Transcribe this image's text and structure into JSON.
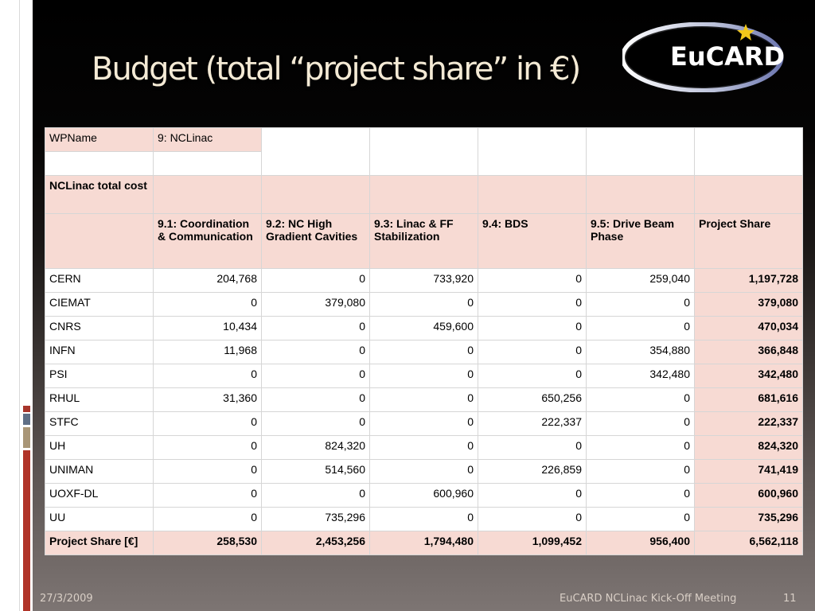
{
  "slide": {
    "title": "Budget (total “project share” in €)",
    "logo_text": "EuCARD",
    "accent": "#f7dad3",
    "star_color": "#f2c81a"
  },
  "table": {
    "wp_row": {
      "label": "WPName",
      "value": "9: NCLinac"
    },
    "total_label": "NCLinac total cost",
    "headers": [
      "",
      "9.1: Coordination & Communication",
      "9.2: NC High Gradient Cavities",
      "9.3: Linac & FF Stabilization",
      "9.4: BDS",
      "9.5: Drive Beam Phase",
      "Project Share"
    ],
    "rows": [
      {
        "name": "CERN",
        "values": [
          "204,768",
          "0",
          "733,920",
          "0",
          "259,040"
        ],
        "share": "1,197,728"
      },
      {
        "name": "CIEMAT",
        "values": [
          "0",
          "379,080",
          "0",
          "0",
          "0"
        ],
        "share": "379,080"
      },
      {
        "name": "CNRS",
        "values": [
          "10,434",
          "0",
          "459,600",
          "0",
          "0"
        ],
        "share": "470,034"
      },
      {
        "name": "INFN",
        "values": [
          "11,968",
          "0",
          "0",
          "0",
          "354,880"
        ],
        "share": "366,848"
      },
      {
        "name": "PSI",
        "values": [
          "0",
          "0",
          "0",
          "0",
          "342,480"
        ],
        "share": "342,480"
      },
      {
        "name": "RHUL",
        "values": [
          "31,360",
          "0",
          "0",
          "650,256",
          "0"
        ],
        "share": "681,616"
      },
      {
        "name": "STFC",
        "values": [
          "0",
          "0",
          "0",
          "222,337",
          "0"
        ],
        "share": "222,337"
      },
      {
        "name": "UH",
        "values": [
          "0",
          "824,320",
          "0",
          "0",
          "0"
        ],
        "share": "824,320"
      },
      {
        "name": "UNIMAN",
        "values": [
          "0",
          "514,560",
          "0",
          "226,859",
          "0"
        ],
        "share": "741,419"
      },
      {
        "name": "UOXF-DL",
        "values": [
          "0",
          "0",
          "600,960",
          "0",
          "0"
        ],
        "share": "600,960"
      },
      {
        "name": "UU",
        "values": [
          "0",
          "735,296",
          "0",
          "0",
          "0"
        ],
        "share": "735,296"
      }
    ],
    "totals": {
      "label": "Project Share [€]",
      "values": [
        "258,530",
        "2,453,256",
        "1,794,480",
        "1,099,452",
        "956,400",
        "6,562,118"
      ]
    }
  },
  "footer": {
    "date": "27/3/2009",
    "event": "EuCARD NCLinac Kick-Off Meeting",
    "page": "11"
  }
}
